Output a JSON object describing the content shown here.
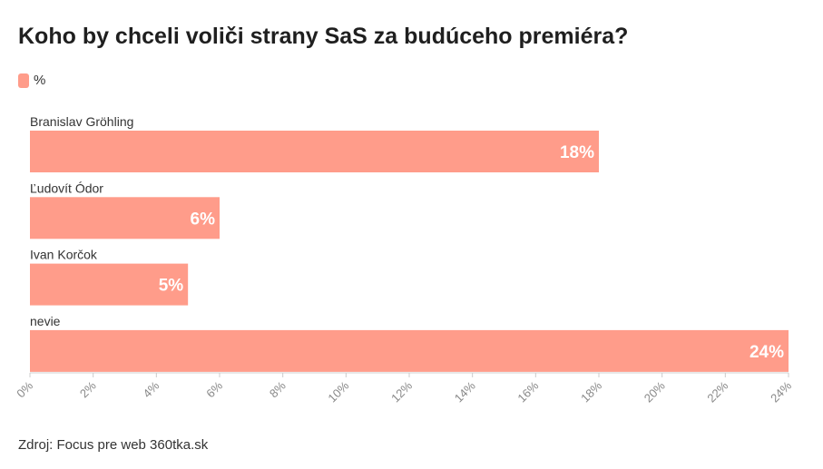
{
  "title": "Koho by chceli voliči strany SaS za budúceho premiéra?",
  "legend": {
    "label": "%",
    "color": "#ff9c8a"
  },
  "source": "Zdroj: Focus pre web 360tka.sk",
  "chart_data": {
    "type": "bar",
    "orientation": "horizontal",
    "title": "Koho by chceli voliči strany SaS za budúceho premiéra?",
    "categories": [
      "Branislav Gröhling",
      "Ľudovít Ódor",
      "Ivan Korčok",
      "nevie"
    ],
    "series": [
      {
        "name": "%",
        "values": [
          18,
          6,
          5,
          24
        ],
        "color": "#ff9c8a"
      }
    ],
    "value_labels": [
      "18%",
      "6%",
      "5%",
      "24%"
    ],
    "xlim": [
      0,
      24
    ],
    "x_ticks": [
      0,
      2,
      4,
      6,
      8,
      10,
      12,
      14,
      16,
      18,
      20,
      22,
      24
    ],
    "x_tick_labels": [
      "0%",
      "2%",
      "4%",
      "6%",
      "8%",
      "10%",
      "12%",
      "14%",
      "16%",
      "18%",
      "20%",
      "22%",
      "24%"
    ],
    "grid": false,
    "legend_position": "top-left"
  }
}
